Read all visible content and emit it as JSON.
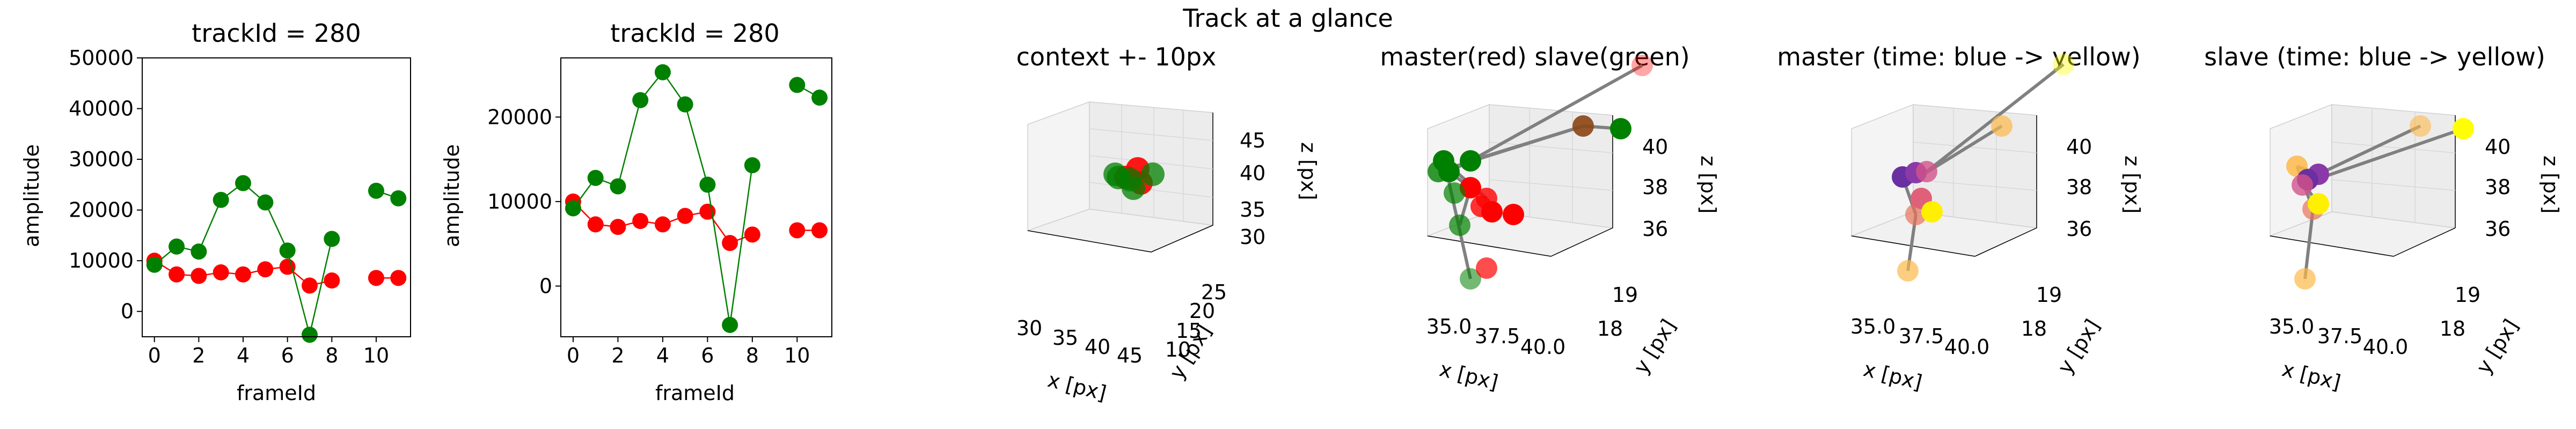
{
  "suptitle": "Track at a glance",
  "colors": {
    "master": "#ff0000",
    "slave": "#008000",
    "line": "#808080"
  },
  "chart_data": [
    {
      "type": "line",
      "title": "trackId = 280",
      "xlabel": "frameId",
      "ylabel": "amplitude",
      "xlim": [
        -0.55,
        11.55
      ],
      "ylim": [
        -5000,
        50000
      ],
      "xticks": [
        "0",
        "2",
        "4",
        "6",
        "8",
        "10"
      ],
      "yticks": [
        "0",
        "10000",
        "20000",
        "30000",
        "40000",
        "50000"
      ],
      "series": [
        {
          "color": "#ff0000",
          "points": [
            [
              0,
              10000
            ],
            [
              1,
              7300
            ],
            [
              2,
              7000
            ],
            [
              3,
              7700
            ],
            [
              4,
              7300
            ],
            [
              5,
              8300
            ],
            [
              6,
              8800
            ],
            [
              7,
              5100
            ],
            [
              8,
              6100
            ],
            [
              10,
              6600
            ],
            [
              11,
              6600
            ]
          ],
          "segments": [
            [
              0,
              1,
              2,
              3,
              4,
              5,
              6,
              7,
              8
            ],
            [
              9,
              10
            ]
          ]
        },
        {
          "color": "#008000",
          "points": [
            [
              0,
              9200
            ],
            [
              1,
              12800
            ],
            [
              2,
              11800
            ],
            [
              3,
              22000
            ],
            [
              4,
              25300
            ],
            [
              5,
              21500
            ],
            [
              6,
              12000
            ],
            [
              7,
              -4600
            ],
            [
              8,
              14300
            ],
            [
              10,
              23800
            ],
            [
              11,
              22300
            ]
          ],
          "segments": [
            [
              0,
              1,
              2,
              3,
              4,
              5,
              6,
              7,
              8
            ],
            [
              9,
              10
            ]
          ]
        }
      ]
    },
    {
      "type": "line",
      "title": "trackId = 280",
      "xlabel": "frameId",
      "ylabel": "amplitude",
      "xlim": [
        -0.55,
        11.55
      ],
      "ylim": [
        -6000,
        27000
      ],
      "xticks": [
        "0",
        "2",
        "4",
        "6",
        "8",
        "10"
      ],
      "yticks": [
        "0",
        "10000",
        "20000"
      ],
      "series": [
        {
          "color": "#ff0000",
          "points": [
            [
              0,
              10000
            ],
            [
              1,
              7300
            ],
            [
              2,
              7000
            ],
            [
              3,
              7700
            ],
            [
              4,
              7300
            ],
            [
              5,
              8300
            ],
            [
              6,
              8800
            ],
            [
              7,
              5100
            ],
            [
              8,
              6100
            ],
            [
              10,
              6600
            ],
            [
              11,
              6600
            ]
          ],
          "segments": [
            [
              0,
              1,
              2,
              3,
              4,
              5,
              6,
              7,
              8
            ],
            [
              9,
              10
            ]
          ]
        },
        {
          "color": "#008000",
          "points": [
            [
              0,
              9200
            ],
            [
              1,
              12800
            ],
            [
              2,
              11800
            ],
            [
              3,
              22000
            ],
            [
              4,
              25300
            ],
            [
              5,
              21500
            ],
            [
              6,
              12000
            ],
            [
              7,
              -4600
            ],
            [
              8,
              14300
            ],
            [
              10,
              23800
            ],
            [
              11,
              22300
            ]
          ],
          "segments": [
            [
              0,
              1,
              2,
              3,
              4,
              5,
              6,
              7,
              8
            ],
            [
              9,
              10
            ]
          ]
        }
      ]
    },
    {
      "type": "scatter",
      "title": "context +- 10px",
      "xlabel": "x [px]",
      "ylabel": "y [px]",
      "zlabel": "z [px]",
      "xticks": [
        "30",
        "35",
        "40",
        "45"
      ],
      "yticks": [
        "10",
        "15",
        "20",
        "25"
      ],
      "zticks": [
        "30",
        "35",
        "40",
        "45"
      ],
      "points": [
        {
          "x": 36,
          "y": 19,
          "z": 38,
          "c": "#ff0000"
        },
        {
          "x": 37,
          "y": 18,
          "z": 39,
          "c": "#ff0000"
        },
        {
          "x": 38,
          "y": 19,
          "z": 37,
          "c": "#ff0000"
        },
        {
          "x": 36,
          "y": 18,
          "z": 37,
          "c": "#008000"
        },
        {
          "x": 35,
          "y": 19,
          "z": 38,
          "c": "#008000"
        },
        {
          "x": 37,
          "y": 19,
          "z": 36,
          "c": "#008000"
        },
        {
          "x": 34,
          "y": 18,
          "z": 38,
          "c": "#008000"
        },
        {
          "x": 39,
          "y": 18,
          "z": 38,
          "c": "#008000"
        }
      ]
    },
    {
      "type": "scatter",
      "title": "master(red) slave(green)",
      "xlabel": "x [px]",
      "ylabel": "y [px]",
      "zlabel": "z [px]",
      "xticks": [
        "35.0",
        "37.5",
        "40.0"
      ],
      "yticks": [
        "18",
        "19"
      ],
      "zticks": [
        "36",
        "38",
        "40"
      ]
    },
    {
      "type": "scatter",
      "title": "master (time: blue -> yellow)",
      "xlabel": "x [px]",
      "ylabel": "y [px]",
      "zlabel": "z [px]",
      "xticks": [
        "35.0",
        "37.5",
        "40.0"
      ],
      "yticks": [
        "18",
        "19"
      ],
      "zticks": [
        "36",
        "38",
        "40"
      ]
    },
    {
      "type": "scatter",
      "title": "slave (time: blue -> yellow)",
      "xlabel": "x [px]",
      "ylabel": "y [px]",
      "zlabel": "z [px]",
      "xticks": [
        "35.0",
        "37.5",
        "40.0"
      ],
      "yticks": [
        "18",
        "19"
      ],
      "zticks": [
        "36",
        "38",
        "40"
      ]
    }
  ]
}
